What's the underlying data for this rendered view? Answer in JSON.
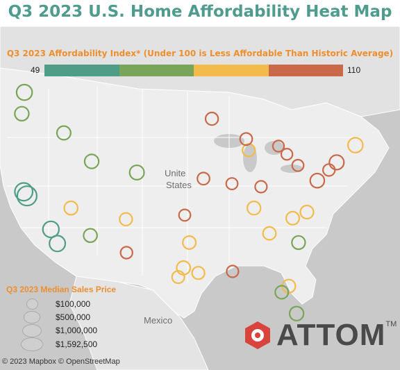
{
  "title": "Q3 2023 U.S. Home Affordability Heat Map",
  "chart_data": {
    "type": "scatter",
    "title": "Q3 2023 U.S. Home Affordability Heat Map",
    "color_legend": {
      "title": "Q3 2023 Affordability Index* (Under 100 is Less Affordable Than Historic Average)",
      "min_label": "49",
      "max_label": "110",
      "min": 49,
      "max": 110,
      "colors": [
        "#4f9c87",
        "#79a55a",
        "#f2bb4b",
        "#c9694a"
      ]
    },
    "size_legend": {
      "title": "Q3 2023 Median Sales Price",
      "entries": [
        {
          "label": "$100,000",
          "value": 100000
        },
        {
          "label": "$500,000",
          "value": 500000
        },
        {
          "label": "$1,000,000",
          "value": 1000000
        },
        {
          "label": "$1,592,500",
          "value": 1592500
        }
      ]
    },
    "points": [
      {
        "lon": -122.4,
        "lat": 37.8,
        "index": 58,
        "price": 1200000
      },
      {
        "lon": -121.9,
        "lat": 37.4,
        "index": 52,
        "price": 1592500
      },
      {
        "lon": -122.3,
        "lat": 47.6,
        "index": 72,
        "price": 750000
      },
      {
        "lon": -122.7,
        "lat": 45.5,
        "index": 75,
        "price": 520000
      },
      {
        "lon": -118.2,
        "lat": 34.1,
        "index": 60,
        "price": 850000
      },
      {
        "lon": -117.2,
        "lat": 32.7,
        "index": 62,
        "price": 800000
      },
      {
        "lon": -112.1,
        "lat": 33.5,
        "index": 78,
        "price": 430000
      },
      {
        "lon": -104.9,
        "lat": 39.7,
        "index": 76,
        "price": 580000
      },
      {
        "lon": -111.9,
        "lat": 40.8,
        "index": 74,
        "price": 520000
      },
      {
        "lon": -115.1,
        "lat": 36.2,
        "index": 80,
        "price": 440000
      },
      {
        "lon": -96.8,
        "lat": 32.8,
        "index": 84,
        "price": 380000
      },
      {
        "lon": -95.4,
        "lat": 29.8,
        "index": 88,
        "price": 310000
      },
      {
        "lon": -97.7,
        "lat": 30.3,
        "index": 82,
        "price": 450000
      },
      {
        "lon": -87.6,
        "lat": 41.9,
        "index": 92,
        "price": 310000
      },
      {
        "lon": -83.0,
        "lat": 42.3,
        "index": 105,
        "price": 190000
      },
      {
        "lon": -84.4,
        "lat": 33.7,
        "index": 86,
        "price": 360000
      },
      {
        "lon": -80.2,
        "lat": 25.8,
        "index": 66,
        "price": 520000
      },
      {
        "lon": -81.4,
        "lat": 28.5,
        "index": 80,
        "price": 390000
      },
      {
        "lon": -82.5,
        "lat": 27.9,
        "index": 78,
        "price": 380000
      },
      {
        "lon": -74.0,
        "lat": 40.7,
        "index": 96,
        "price": 600000
      },
      {
        "lon": -75.2,
        "lat": 39.95,
        "index": 103,
        "price": 250000
      },
      {
        "lon": -77.0,
        "lat": 38.9,
        "index": 98,
        "price": 540000
      },
      {
        "lon": -71.1,
        "lat": 42.4,
        "index": 80,
        "price": 650000
      },
      {
        "lon": -80.8,
        "lat": 35.2,
        "index": 88,
        "price": 380000
      },
      {
        "lon": -86.8,
        "lat": 36.2,
        "index": 80,
        "price": 420000
      },
      {
        "lon": -90.2,
        "lat": 38.6,
        "index": 104,
        "price": 220000
      },
      {
        "lon": -93.3,
        "lat": 45.0,
        "index": 98,
        "price": 330000
      },
      {
        "lon": -94.6,
        "lat": 39.1,
        "index": 99,
        "price": 290000
      },
      {
        "lon": -97.5,
        "lat": 35.5,
        "index": 106,
        "price": 220000
      },
      {
        "lon": -90.1,
        "lat": 29.95,
        "index": 102,
        "price": 240000
      },
      {
        "lon": -106.6,
        "lat": 35.1,
        "index": 90,
        "price": 330000
      },
      {
        "lon": -116.2,
        "lat": 43.6,
        "index": 68,
        "price": 480000
      },
      {
        "lon": -106.5,
        "lat": 31.8,
        "index": 97,
        "price": 260000
      },
      {
        "lon": -98.5,
        "lat": 29.4,
        "index": 92,
        "price": 300000
      },
      {
        "lon": -88.0,
        "lat": 43.0,
        "index": 100,
        "price": 280000
      },
      {
        "lon": -81.7,
        "lat": 41.5,
        "index": 108,
        "price": 190000
      },
      {
        "lon": -80.0,
        "lat": 40.4,
        "index": 107,
        "price": 210000
      },
      {
        "lon": -78.6,
        "lat": 35.8,
        "index": 85,
        "price": 400000
      },
      {
        "lon": -79.9,
        "lat": 32.8,
        "index": 78,
        "price": 420000
      },
      {
        "lon": -85.7,
        "lat": 38.3,
        "index": 101,
        "price": 240000
      }
    ]
  },
  "map_labels": {
    "country_us_line1": "Unite",
    "country_us_line2": "States",
    "mexico": "Mexico"
  },
  "attribution": "© 2023 Mapbox  © OpenStreetMap",
  "logo": {
    "text": "ATTOM",
    "tm": "TM"
  }
}
